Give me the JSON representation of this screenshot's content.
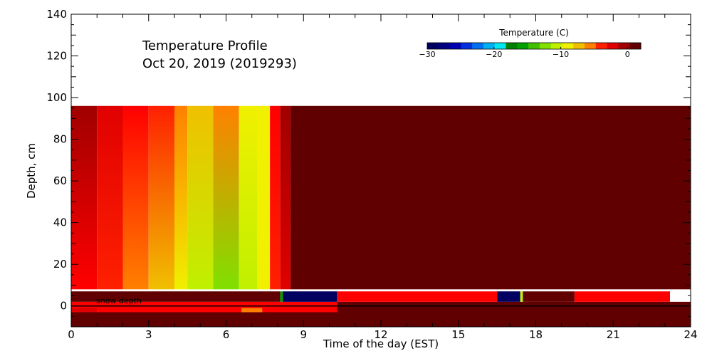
{
  "chart_data": {
    "type": "heatmap",
    "title_line1": "Temperature Profile",
    "title_line2": "Oct 20, 2019 (2019293)",
    "xlabel": "Time of the day (EST)",
    "ylabel": "Depth, cm",
    "xlim": [
      0,
      24
    ],
    "ylim": [
      -10,
      140
    ],
    "x_ticks": [
      0,
      3,
      6,
      9,
      12,
      15,
      18,
      21,
      24
    ],
    "y_ticks": [
      0,
      20,
      40,
      60,
      80,
      100,
      120,
      140
    ],
    "annotation": "snow depth",
    "colorbar": {
      "title": "Temperature (C)",
      "range": [
        -30,
        2
      ],
      "ticks": [
        -30,
        -20,
        -10,
        0
      ],
      "colors": [
        "#000060",
        "#000080",
        "#0000b0",
        "#0030e0",
        "#0070f0",
        "#00b0f0",
        "#00e8f0",
        "#008000",
        "#00a000",
        "#40c000",
        "#80e000",
        "#c0f000",
        "#f0f000",
        "#f0c000",
        "#ff8000",
        "#ff2000",
        "#e00000",
        "#a00000",
        "#600000"
      ]
    },
    "depth_profile": {
      "y_range": [
        8,
        96
      ],
      "segments": [
        {
          "x0": 0.0,
          "x1": 1.0,
          "bottom": "#ff0000",
          "top": "#a00000"
        },
        {
          "x0": 1.0,
          "x1": 2.0,
          "bottom": "#ff2000",
          "top": "#e00000"
        },
        {
          "x0": 2.0,
          "x1": 3.0,
          "bottom": "#ff8000",
          "top": "#ff0000"
        },
        {
          "x0": 3.0,
          "x1": 4.0,
          "bottom": "#f0c000",
          "top": "#ff2000"
        },
        {
          "x0": 4.0,
          "x1": 4.5,
          "bottom": "#f0f000",
          "top": "#ff8000"
        },
        {
          "x0": 4.5,
          "x1": 5.5,
          "bottom": "#c0f000",
          "top": "#f0c000"
        },
        {
          "x0": 5.5,
          "x1": 6.5,
          "bottom": "#80e000",
          "top": "#ff8000"
        },
        {
          "x0": 6.5,
          "x1": 7.2,
          "bottom": "#c0f000",
          "top": "#f0f000"
        },
        {
          "x0": 7.2,
          "x1": 7.7,
          "bottom": "#f0f000",
          "top": "#f0f000"
        },
        {
          "x0": 7.7,
          "x1": 8.1,
          "bottom": "#ff2000",
          "top": "#ff0000"
        },
        {
          "x0": 8.1,
          "x1": 8.5,
          "bottom": "#e00000",
          "top": "#a00000"
        },
        {
          "x0": 8.5,
          "x1": 24.0,
          "bottom": "#600000",
          "top": "#600000"
        }
      ]
    },
    "surface_band": {
      "y_range": [
        2,
        7
      ],
      "segments": [
        {
          "x0": 0.0,
          "x1": 8.1,
          "color": "#600000"
        },
        {
          "x0": 8.1,
          "x1": 8.2,
          "color": "#00a000"
        },
        {
          "x0": 8.2,
          "x1": 10.3,
          "color": "#000060"
        },
        {
          "x0": 10.3,
          "x1": 16.5,
          "color": "#ff0000"
        },
        {
          "x0": 16.5,
          "x1": 17.4,
          "color": "#000060"
        },
        {
          "x0": 17.4,
          "x1": 17.5,
          "color": "#c0f000"
        },
        {
          "x0": 17.5,
          "x1": 19.5,
          "color": "#600000"
        },
        {
          "x0": 19.5,
          "x1": 23.2,
          "color": "#ff0000"
        }
      ]
    },
    "ground_band_upper": {
      "y_range": [
        -2,
        2
      ],
      "segments": [
        {
          "x0": 0.0,
          "x1": 10.3,
          "color": "#ff0000"
        },
        {
          "x0": 10.3,
          "x1": 24.0,
          "color": "#600000"
        }
      ]
    },
    "ground_band_lower": {
      "y_range": [
        -3,
        -1
      ],
      "segments": [
        {
          "x0": 0.0,
          "x1": 1.0,
          "color": "#e00000"
        },
        {
          "x0": 1.0,
          "x1": 6.6,
          "color": "#ff0000"
        },
        {
          "x0": 6.6,
          "x1": 7.4,
          "color": "#ff8000"
        },
        {
          "x0": 7.4,
          "x1": 10.3,
          "color": "#ff0000"
        },
        {
          "x0": 10.3,
          "x1": 24.0,
          "color": "#600000"
        }
      ]
    },
    "deep_band": {
      "y_range": [
        -10,
        -3
      ],
      "color": "#600000"
    }
  }
}
